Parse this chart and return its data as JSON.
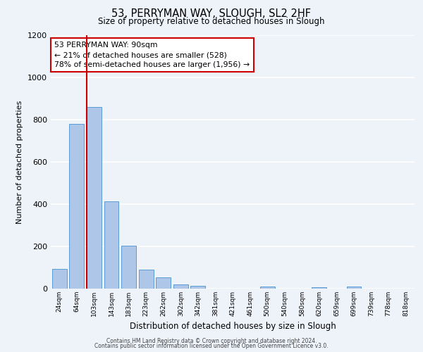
{
  "title": "53, PERRYMAN WAY, SLOUGH, SL2 2HF",
  "subtitle": "Size of property relative to detached houses in Slough",
  "xlabel": "Distribution of detached houses by size in Slough",
  "ylabel": "Number of detached properties",
  "bar_labels": [
    "24sqm",
    "64sqm",
    "103sqm",
    "143sqm",
    "183sqm",
    "223sqm",
    "262sqm",
    "302sqm",
    "342sqm",
    "381sqm",
    "421sqm",
    "461sqm",
    "500sqm",
    "540sqm",
    "580sqm",
    "620sqm",
    "659sqm",
    "699sqm",
    "739sqm",
    "778sqm",
    "818sqm"
  ],
  "bar_values": [
    95,
    780,
    860,
    415,
    205,
    90,
    52,
    20,
    15,
    0,
    0,
    0,
    10,
    0,
    0,
    8,
    0,
    10,
    0,
    0,
    0
  ],
  "bar_color": "#aec6e8",
  "bar_edge_color": "#5b9bd5",
  "background_color": "#eef2f9",
  "grid_color": "#ffffff",
  "vline_color": "#cc0000",
  "annotation_title": "53 PERRYMAN WAY: 90sqm",
  "annotation_line1": "← 21% of detached houses are smaller (528)",
  "annotation_line2": "78% of semi-detached houses are larger (1,956) →",
  "annotation_box_color": "#cc0000",
  "ylim": [
    0,
    1200
  ],
  "yticks": [
    0,
    200,
    400,
    600,
    800,
    1000,
    1200
  ],
  "footer1": "Contains HM Land Registry data © Crown copyright and database right 2024.",
  "footer2": "Contains public sector information licensed under the Open Government Licence v3.0."
}
